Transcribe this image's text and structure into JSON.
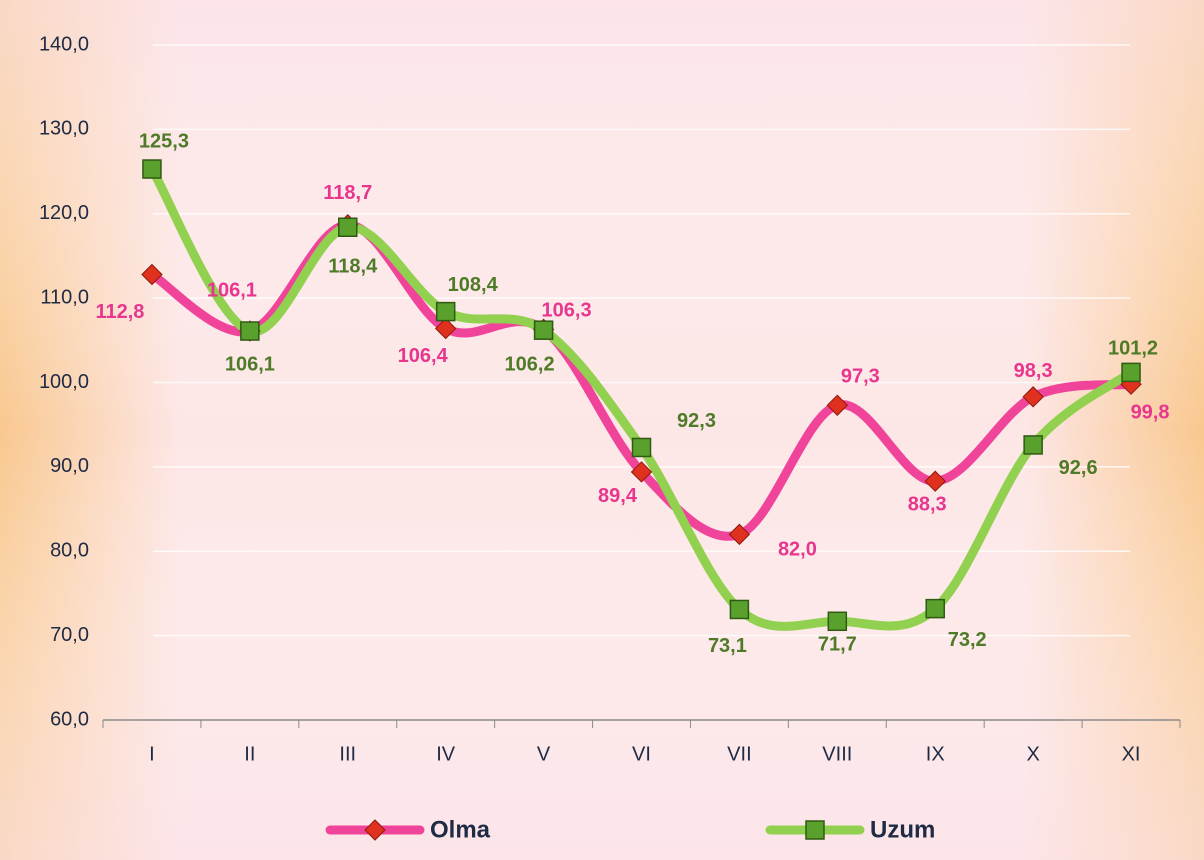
{
  "chart_data": {
    "type": "line",
    "categories": [
      "I",
      "II",
      "III",
      "IV",
      "V",
      "VI",
      "VII",
      "VIII",
      "IX",
      "X",
      "XI"
    ],
    "series": [
      {
        "name": "Olma",
        "color": "#f0449a",
        "marker_color": "#e0301e",
        "label_color": "#e8368f",
        "values": [
          112.8,
          106.1,
          118.7,
          106.4,
          106.3,
          89.4,
          82.0,
          97.3,
          88.3,
          98.3,
          99.8
        ],
        "value_labels": [
          "112,8",
          "106,1",
          "118,7",
          "106,4",
          "106,3",
          "89,4",
          "82,0",
          "97,3",
          "88,3",
          "98,3",
          "99,8"
        ]
      },
      {
        "name": "Uzum",
        "color": "#92d050",
        "marker_color": "#5aa02c",
        "label_color": "#4f7a28",
        "values": [
          125.3,
          106.1,
          118.4,
          108.4,
          106.2,
          92.3,
          73.1,
          71.7,
          73.2,
          92.6,
          101.2
        ],
        "value_labels": [
          "125,3",
          "106,1",
          "118,4",
          "108,4",
          "106,2",
          "92,3",
          "73,1",
          "71,7",
          "73,2",
          "92,6",
          "101,2"
        ]
      }
    ],
    "ylim": [
      60,
      140
    ],
    "yticks": [
      {
        "value": 60,
        "label": "60,0"
      },
      {
        "value": 70,
        "label": "70,0"
      },
      {
        "value": 80,
        "label": "80,0"
      },
      {
        "value": 90,
        "label": "90,0"
      },
      {
        "value": 100,
        "label": "100,0"
      },
      {
        "value": 110,
        "label": "110,0"
      },
      {
        "value": 120,
        "label": "120,0"
      },
      {
        "value": 130,
        "label": "130,0"
      },
      {
        "value": 140,
        "label": "140,0"
      }
    ],
    "grid": true,
    "legend": "bottom"
  }
}
